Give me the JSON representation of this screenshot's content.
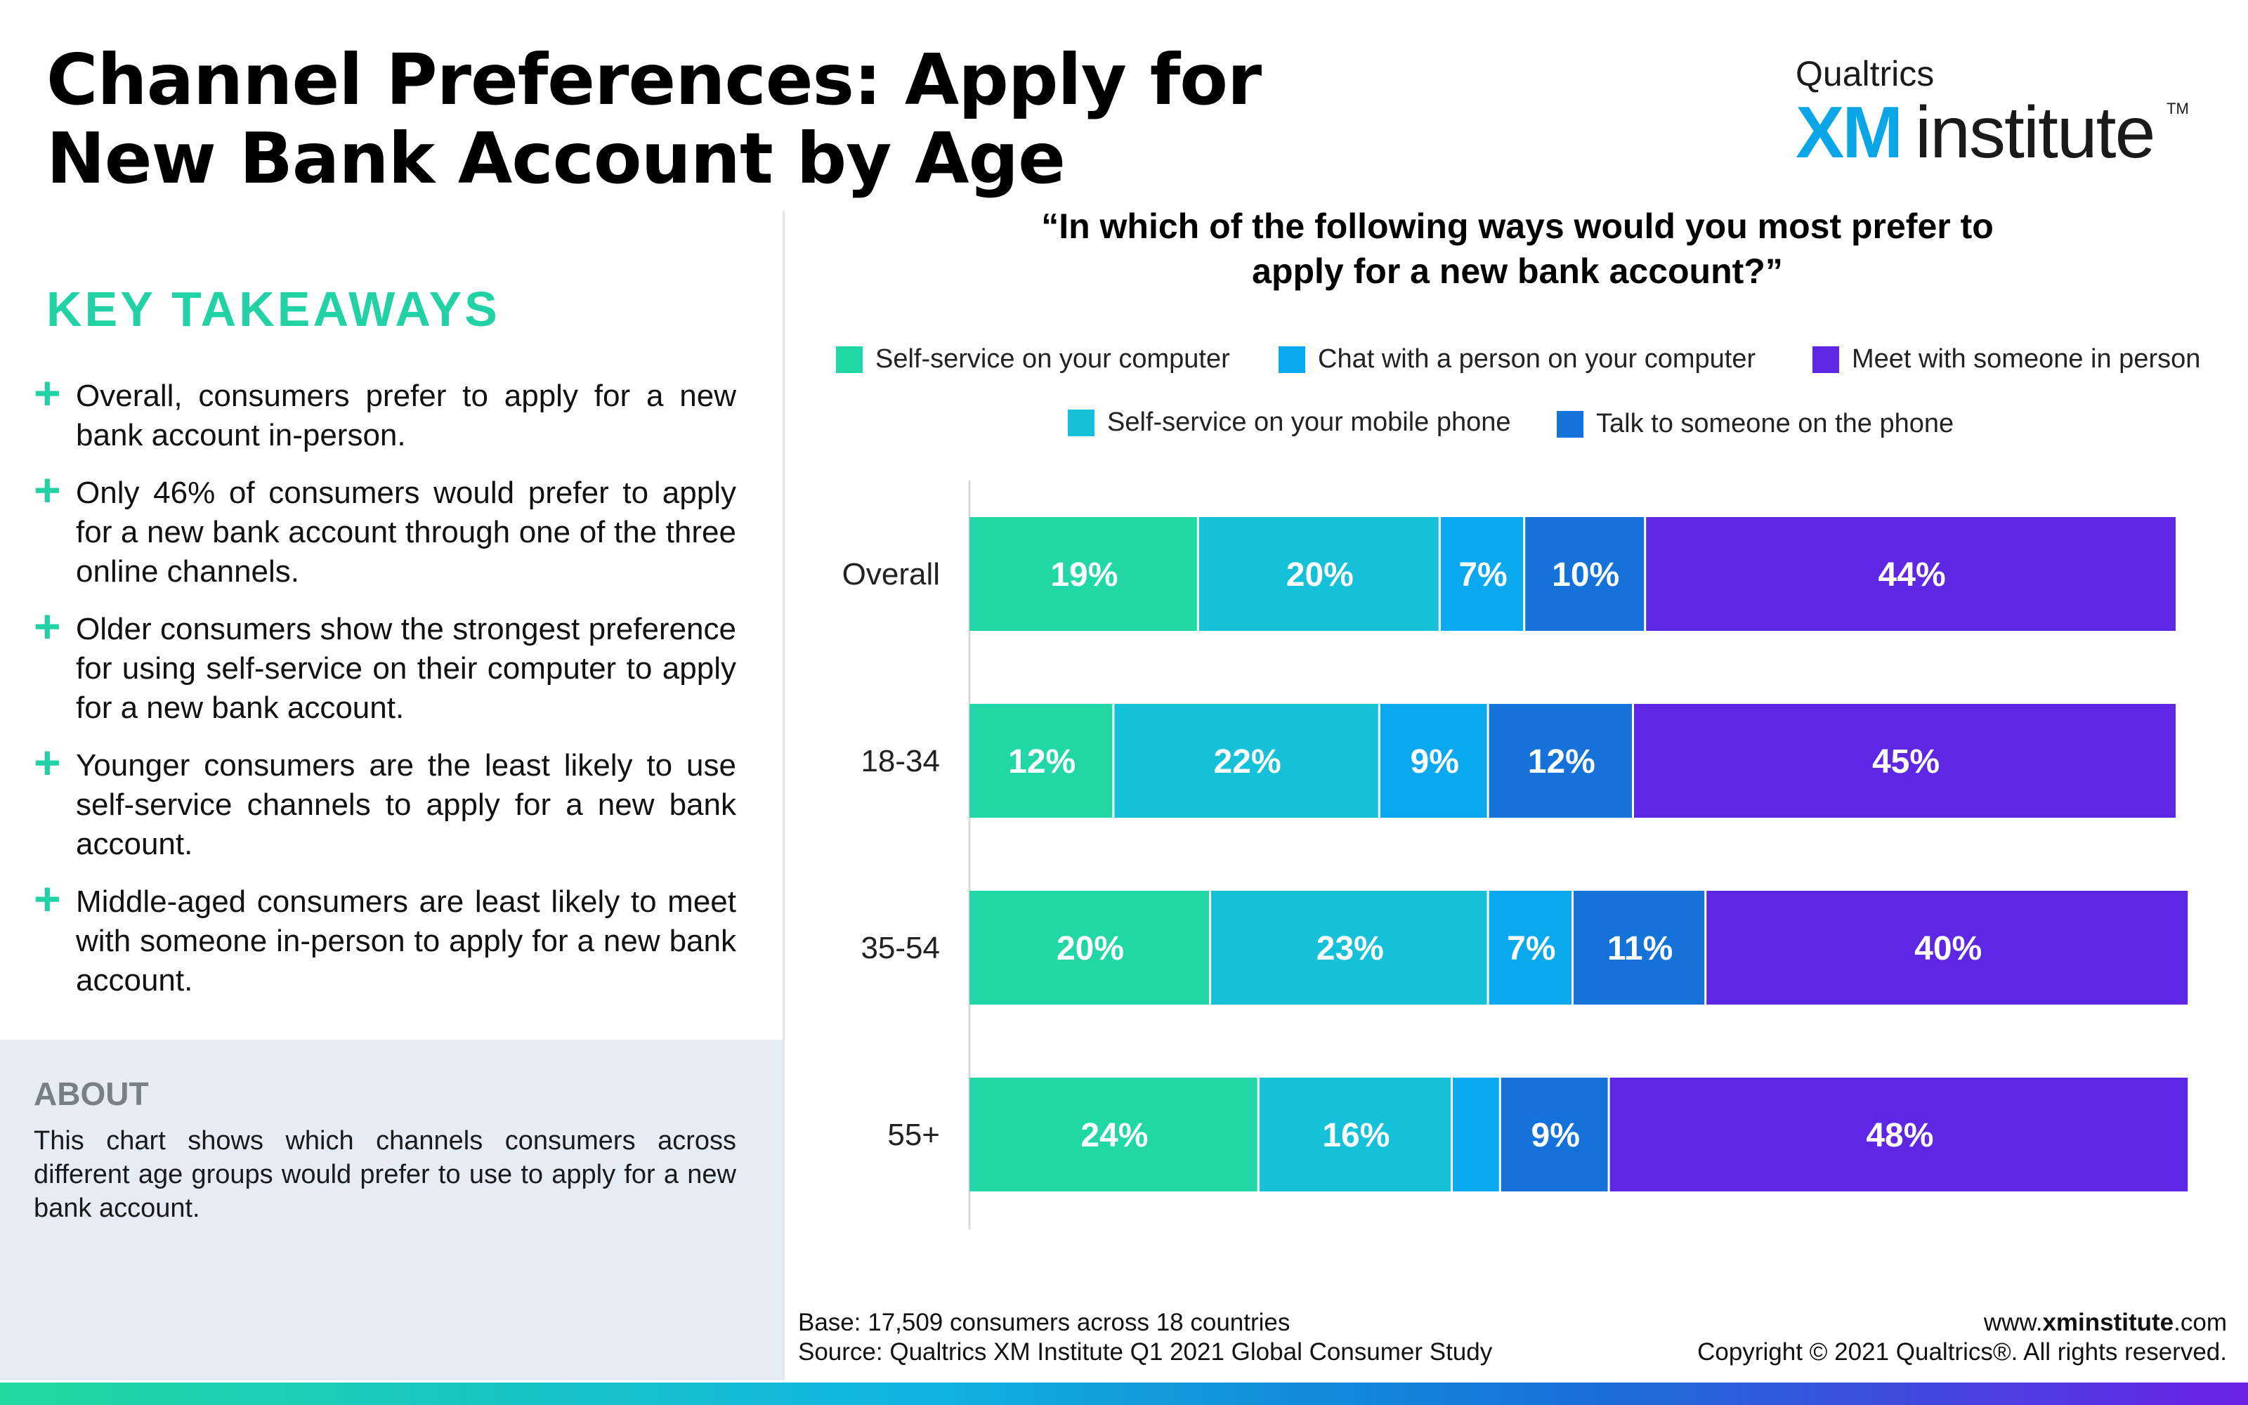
{
  "header": {
    "title": "Channel Preferences: Apply for New Bank Account by Age",
    "logo_brand": "Qualtrics",
    "logo_xm": "XM",
    "logo_institute": "institute",
    "logo_tm": "TM"
  },
  "takeaways": {
    "heading": "KEY TAKEAWAYS",
    "items": [
      "Overall, consumers prefer to apply for a new bank account in-person.",
      "Only 46% of consumers would prefer to apply for a new bank account through one of the three online channels.",
      "Older consumers show the strongest preference for using self-service on their computer to apply for a new bank account.",
      "Younger consumers are the least likely to use self-service channels to apply for a new bank account.",
      "Middle-aged consumers are least likely to meet with someone in-person to apply for a new bank account."
    ]
  },
  "about": {
    "heading": "ABOUT",
    "text": "This chart shows which channels consumers across different age groups would prefer to use to apply for a new bank account."
  },
  "chart_data": {
    "type": "bar",
    "orientation": "horizontal",
    "stacked": true,
    "title": "“In which of the following ways would you most prefer to apply for a new bank account?”",
    "categories": [
      "Overall",
      "18-34",
      "35-54",
      "55+"
    ],
    "series": [
      {
        "name": "Self-service on your computer",
        "color": "#22d7a6",
        "values": [
          19,
          12,
          20,
          24
        ],
        "labels": [
          "19%",
          "12%",
          "20%",
          "24%"
        ]
      },
      {
        "name": "Self-service on your mobile phone",
        "color": "#14c1d8",
        "values": [
          20,
          22,
          23,
          16
        ],
        "labels": [
          "20%",
          "22%",
          "23%",
          "16%"
        ]
      },
      {
        "name": "Chat with a person on your computer",
        "color": "#0aa8ee",
        "values": [
          7,
          9,
          7,
          4
        ],
        "labels": [
          "7%",
          "9%",
          "7%",
          ""
        ]
      },
      {
        "name": "Talk to someone on the phone",
        "color": "#1572d8",
        "values": [
          10,
          12,
          11,
          9
        ],
        "labels": [
          "10%",
          "12%",
          "11%",
          "9%"
        ]
      },
      {
        "name": "Meet with someone in person",
        "color": "#5e27e3",
        "values": [
          44,
          45,
          40,
          48
        ],
        "labels": [
          "44%",
          "45%",
          "40%",
          "48%"
        ]
      }
    ],
    "xlim": [
      0,
      100
    ],
    "grid": false,
    "legend_position": "top"
  },
  "footer": {
    "base": "Base: 17,509 consumers across 18 countries",
    "source": "Source: Qualtrics XM Institute Q1 2021 Global Consumer Study",
    "url_prefix": "www.",
    "url_bold": "xminstitute",
    "url_suffix": ".com",
    "copyright": "Copyright © 2021 Qualtrics®. All rights reserved."
  }
}
